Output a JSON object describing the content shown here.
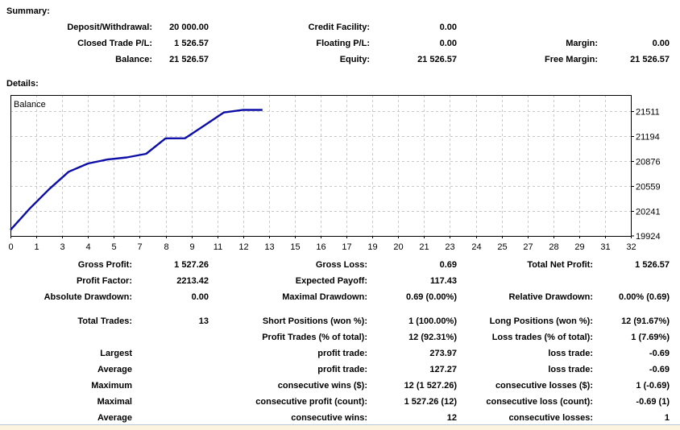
{
  "summary": {
    "heading": "Summary:",
    "rows": [
      [
        "Deposit/Withdrawal:",
        "20 000.00",
        "Credit Facility:",
        "0.00",
        "",
        ""
      ],
      [
        "Closed Trade P/L:",
        "1 526.57",
        "Floating P/L:",
        "0.00",
        "Margin:",
        "0.00"
      ],
      [
        "Balance:",
        "21 526.57",
        "Equity:",
        "21 526.57",
        "Free Margin:",
        "21 526.57"
      ]
    ]
  },
  "details": {
    "heading": "Details:",
    "rows": [
      [
        "Gross Profit:",
        "1 527.26",
        "Gross Loss:",
        "0.69",
        "Total Net Profit:",
        "1 526.57"
      ],
      [
        "Profit Factor:",
        "2213.42",
        "Expected Payoff:",
        "117.43",
        "",
        ""
      ],
      [
        "Absolute Drawdown:",
        "0.00",
        "Maximal Drawdown:",
        "0.69 (0.00%)",
        "Relative Drawdown:",
        "0.00% (0.69)"
      ],
      [
        "Total Trades:",
        "13",
        "Short Positions (won %):",
        "1 (100.00%)",
        "Long Positions (won %):",
        "12 (91.67%)"
      ],
      [
        "",
        "",
        "Profit Trades (% of total):",
        "12 (92.31%)",
        "Loss trades (% of total):",
        "1 (7.69%)"
      ],
      [
        "Largest",
        "",
        "profit trade:",
        "273.97",
        "loss trade:",
        "-0.69"
      ],
      [
        "Average",
        "",
        "profit trade:",
        "127.27",
        "loss trade:",
        "-0.69"
      ],
      [
        "Maximum",
        "",
        "consecutive wins ($):",
        "12 (1 527.26)",
        "consecutive losses ($):",
        "1 (-0.69)"
      ],
      [
        "Maximal",
        "",
        "consecutive profit (count):",
        "1 527.26 (12)",
        "consecutive loss (count):",
        "-0.69 (1)"
      ],
      [
        "Average",
        "",
        "consecutive wins:",
        "12",
        "consecutive losses:",
        "1"
      ]
    ]
  },
  "chart_data": {
    "type": "line",
    "title": "Balance",
    "series": [
      {
        "name": "Balance",
        "values": [
          20000,
          20274,
          20520,
          20740,
          20846,
          20896,
          20922,
          20968,
          21165,
          21166,
          21328,
          21494,
          21527.26,
          21526.57
        ]
      }
    ],
    "x": [
      0,
      1,
      2,
      3,
      4,
      5,
      6,
      7,
      8,
      9,
      10,
      11,
      12,
      13
    ],
    "xlim": [
      0,
      32
    ],
    "ylim": [
      19924,
      21716
    ],
    "x_tick_labels": [
      "0",
      "1",
      "3",
      "4",
      "5",
      "7",
      "8",
      "9",
      "11",
      "12",
      "13",
      "15",
      "16",
      "17",
      "19",
      "20",
      "21",
      "23",
      "24",
      "25",
      "27",
      "28",
      "29",
      "31",
      "32"
    ],
    "y_ticks": [
      {
        "value": 21511,
        "label": "21511"
      },
      {
        "value": 21194,
        "label": "21194"
      },
      {
        "value": 20876,
        "label": "20876"
      },
      {
        "value": 20559,
        "label": "20559"
      },
      {
        "value": 20241,
        "label": "20241"
      },
      {
        "value": 19924,
        "label": "19924"
      }
    ],
    "grid": true,
    "legend_position": "inside-top-left"
  },
  "colors": {
    "line": "#0d0da8",
    "grid": "#c9c9c9",
    "frame": "#000000",
    "band_bg": "#fcf4de",
    "band_border": "#b7c8da"
  }
}
